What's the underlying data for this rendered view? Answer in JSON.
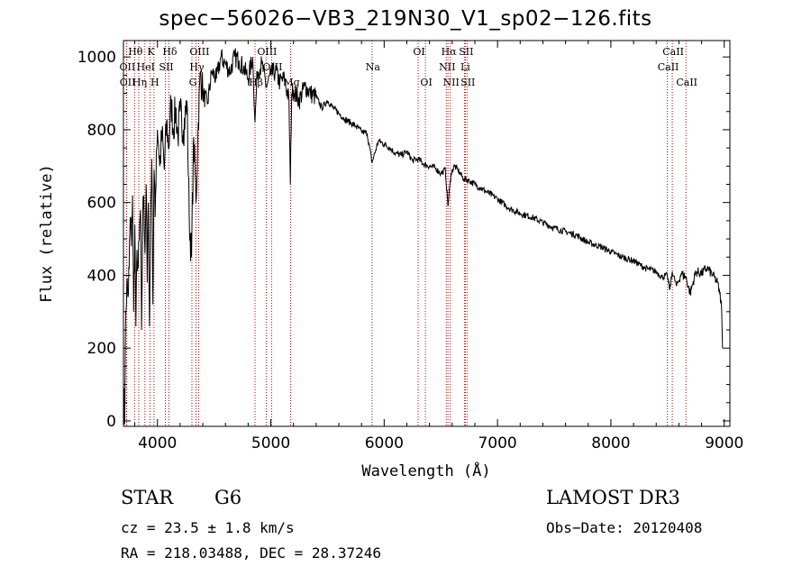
{
  "header": {
    "title": "spec−56026−VB3_219N30_V1_sp02−126.fits"
  },
  "info": {
    "object_class": "STAR",
    "subclass": "G6",
    "redshift_line": "cz = 23.5 ± 1.8 km/s",
    "coords_line": "RA = 218.03488, DEC =  28.37246",
    "survey": "LAMOST DR3",
    "obs_date": "Obs−Date: 20120408"
  },
  "colors": {
    "line": "#000000",
    "marker": "#c00000"
  },
  "chart_data": {
    "type": "line",
    "title": "spec−56026−VB3_219N30_V1_sp02−126.fits",
    "xlabel": "Wavelength (Å)",
    "ylabel": "Flux (relative)",
    "xlim": [
      3700,
      9050
    ],
    "ylim": [
      -15,
      1045
    ],
    "xticks": [
      4000,
      5000,
      6000,
      7000,
      8000,
      9000
    ],
    "yticks": [
      0,
      200,
      400,
      600,
      800,
      1000
    ],
    "grid": false,
    "series": [
      {
        "name": "flux",
        "x": [
          3700,
          3705,
          3712,
          3720,
          3730,
          3740,
          3750,
          3760,
          3770,
          3780,
          3790,
          3800,
          3810,
          3820,
          3830,
          3840,
          3850,
          3860,
          3870,
          3880,
          3890,
          3900,
          3910,
          3920,
          3930,
          3940,
          3950,
          3960,
          3970,
          3980,
          3990,
          4000,
          4010,
          4020,
          4040,
          4060,
          4080,
          4101,
          4120,
          4140,
          4160,
          4180,
          4200,
          4230,
          4260,
          4280,
          4300,
          4320,
          4340,
          4360,
          4380,
          4400,
          4440,
          4480,
          4520,
          4560,
          4600,
          4640,
          4680,
          4720,
          4760,
          4800,
          4840,
          4861,
          4880,
          4920,
          4960,
          5000,
          5040,
          5080,
          5120,
          5160,
          5172,
          5184,
          5200,
          5250,
          5300,
          5350,
          5400,
          5450,
          5500,
          5550,
          5600,
          5650,
          5700,
          5750,
          5800,
          5850,
          5893,
          5950,
          6000,
          6050,
          6100,
          6150,
          6200,
          6250,
          6300,
          6350,
          6400,
          6450,
          6500,
          6540,
          6563,
          6590,
          6620,
          6650,
          6700,
          6750,
          6800,
          6850,
          6900,
          7000,
          7100,
          7200,
          7300,
          7400,
          7500,
          7600,
          7700,
          7800,
          7900,
          8000,
          8100,
          8200,
          8300,
          8400,
          8450,
          8498,
          8520,
          8542,
          8580,
          8620,
          8662,
          8700,
          8750,
          8800,
          8850,
          8900,
          8940,
          8960,
          8975,
          8985
        ],
        "values": [
          30,
          90,
          0,
          300,
          380,
          340,
          420,
          560,
          480,
          620,
          300,
          540,
          260,
          470,
          420,
          500,
          580,
          250,
          560,
          620,
          460,
          650,
          380,
          600,
          260,
          580,
          720,
          320,
          690,
          560,
          740,
          800,
          760,
          700,
          790,
          690,
          820,
          750,
          880,
          800,
          860,
          780,
          850,
          800,
          880,
          560,
          450,
          780,
          600,
          820,
          960,
          900,
          870,
          960,
          940,
          1000,
          980,
          960,
          1000,
          990,
          970,
          940,
          1000,
          820,
          960,
          980,
          920,
          950,
          960,
          930,
          940,
          880,
          650,
          900,
          910,
          880,
          920,
          900,
          890,
          860,
          880,
          860,
          845,
          830,
          820,
          810,
          795,
          790,
          710,
          770,
          760,
          750,
          735,
          730,
          740,
          715,
          720,
          705,
          700,
          695,
          680,
          690,
          590,
          680,
          700,
          690,
          665,
          660,
          650,
          640,
          630,
          610,
          585,
          570,
          560,
          545,
          530,
          520,
          510,
          490,
          480,
          465,
          450,
          440,
          420,
          410,
          395,
          400,
          360,
          410,
          370,
          405,
          395,
          350,
          410,
          405,
          420,
          400,
          380,
          350,
          320,
          200
        ]
      }
    ],
    "line_markers": [
      {
        "label": "Hθ",
        "x": 3798,
        "row": 0
      },
      {
        "label": "OII",
        "x": 3727,
        "row": 1
      },
      {
        "label": "OII",
        "x": 3729,
        "row": 2
      },
      {
        "label": "Hη",
        "x": 3835,
        "row": 2
      },
      {
        "label": "HeI",
        "x": 3889,
        "row": 1
      },
      {
        "label": "K",
        "x": 3934,
        "row": 0
      },
      {
        "label": "H",
        "x": 3969,
        "row": 2
      },
      {
        "label": "SII",
        "x": 4070,
        "row": 1
      },
      {
        "label": "Hδ",
        "x": 4101,
        "row": 0
      },
      {
        "label": "OIII",
        "x": 4363,
        "row": 0
      },
      {
        "label": "Hγ",
        "x": 4340,
        "row": 1
      },
      {
        "label": "G",
        "x": 4304,
        "row": 2
      },
      {
        "label": "OIII",
        "x": 4959,
        "row": 0
      },
      {
        "label": "Hβ",
        "x": 4861,
        "row": 2
      },
      {
        "label": "OIII",
        "x": 5007,
        "row": 1
      },
      {
        "label": "Mg",
        "x": 5175,
        "row": 2
      },
      {
        "label": "Na",
        "x": 5893,
        "row": 1
      },
      {
        "label": "OI",
        "x": 6300,
        "row": 0
      },
      {
        "label": "OI",
        "x": 6364,
        "row": 2
      },
      {
        "label": "Hα",
        "x": 6563,
        "row": 0
      },
      {
        "label": "NII",
        "x": 6548,
        "row": 1
      },
      {
        "label": "NII",
        "x": 6583,
        "row": 2
      },
      {
        "label": "SII",
        "x": 6716,
        "row": 0
      },
      {
        "label": "Li",
        "x": 6708,
        "row": 1
      },
      {
        "label": "SII",
        "x": 6731,
        "row": 2
      },
      {
        "label": "CaII",
        "x": 8542,
        "row": 0
      },
      {
        "label": "CaII",
        "x": 8498,
        "row": 1
      },
      {
        "label": "CaII",
        "x": 8662,
        "row": 2
      }
    ]
  }
}
